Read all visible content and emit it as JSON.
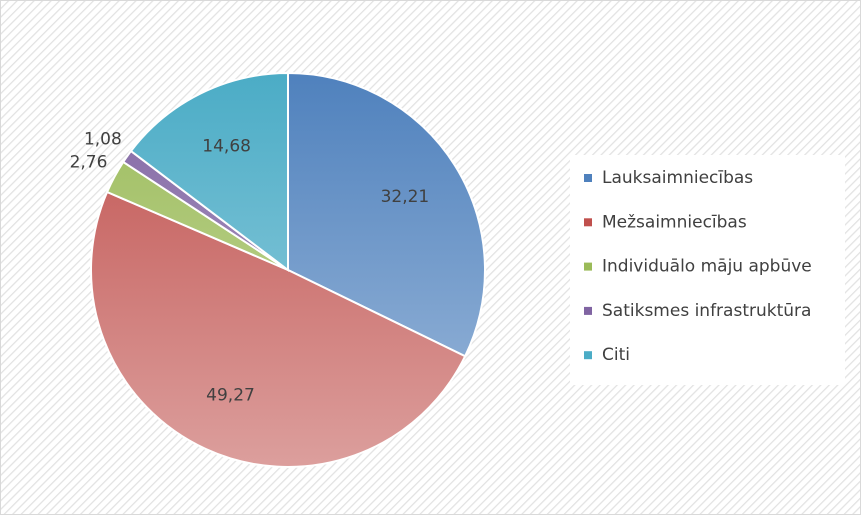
{
  "chart_data": {
    "type": "pie",
    "categories": [
      "Lauksaimniecības",
      "Mežsaimniecības",
      "Individuālo māju apbūve",
      "Satiksmes infrastruktūra",
      "Citi"
    ],
    "values": [
      32.21,
      49.27,
      2.76,
      1.08,
      14.68
    ],
    "value_labels": [
      "32,21",
      "49,27",
      "2,76",
      "1,08",
      "14,68"
    ],
    "colors": [
      "#4f81bd",
      "#c0504d",
      "#9bbb59",
      "#8064a2",
      "#4bacc6"
    ],
    "legend": "right"
  }
}
